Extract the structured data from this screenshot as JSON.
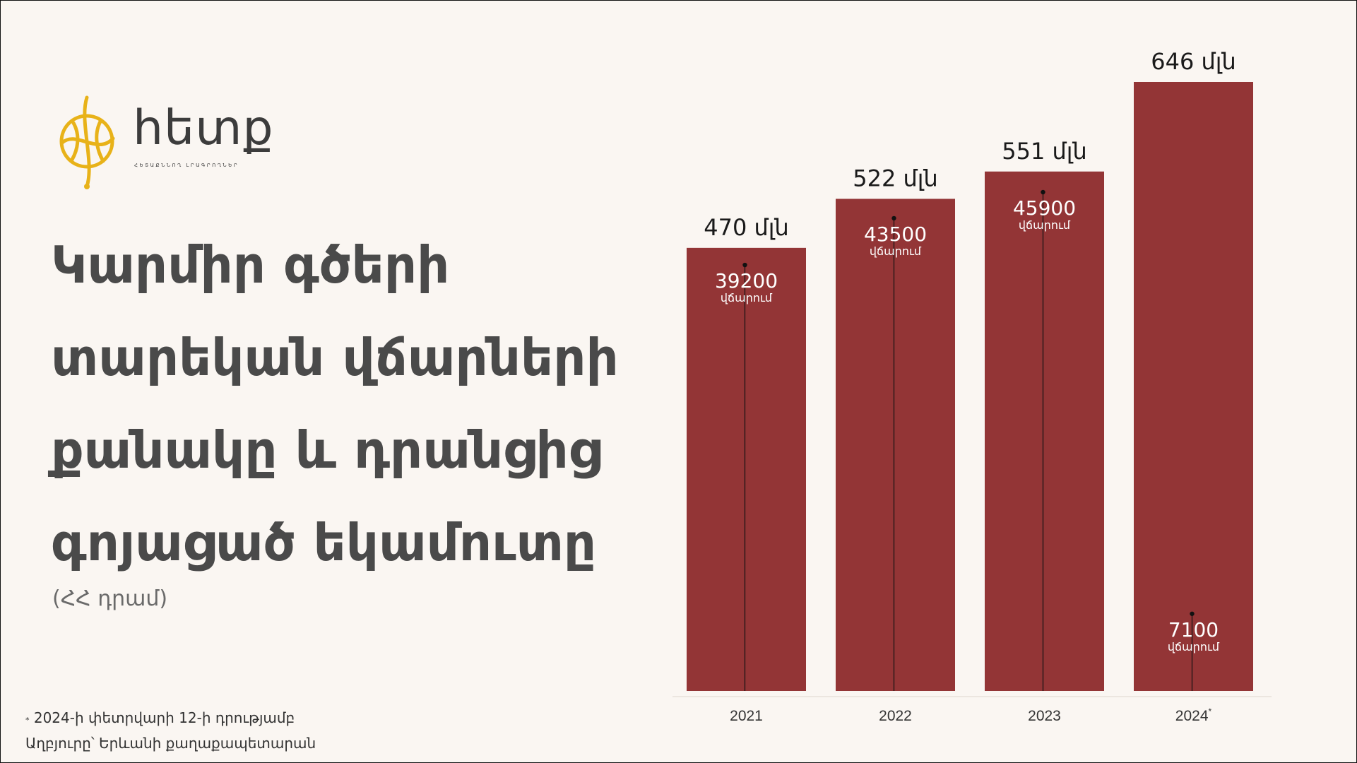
{
  "logo": {
    "wordmark": "հետք",
    "tagline": "ՀԵՏԱՔՆՆՈՂ ԼՐԱԳՐՈՂՆԵՐ"
  },
  "headline": "Կարմիր գծերի տարեկան վճարների քանակը և դրանցից գոյացած եկամուտը",
  "unit": "(ՀՀ դրամ)",
  "footnote": {
    "mark": "*",
    "note": "2024-ի փետրվարի 12-ի դրությամբ",
    "source": "Աղբյուրը՝ Երևանի քաղաքապետարան"
  },
  "colors": {
    "bar": "#933536",
    "background": "#faf6f2",
    "logo_accent": "#e8b219"
  },
  "chart_data": {
    "type": "bar",
    "categories": [
      "2021",
      "2022",
      "2023",
      "2024"
    ],
    "category_marks": [
      "",
      "",
      "",
      "*"
    ],
    "series": [
      {
        "values": [
          470,
          522,
          551,
          646
        ],
        "labels": [
          "470 մլն",
          "522 մլն",
          "551 մլն",
          "646 մլն"
        ]
      },
      {
        "values": [
          39200,
          43500,
          45900,
          7100
        ],
        "unit_label": "վճարում"
      }
    ],
    "grid": false,
    "legend": "none"
  }
}
